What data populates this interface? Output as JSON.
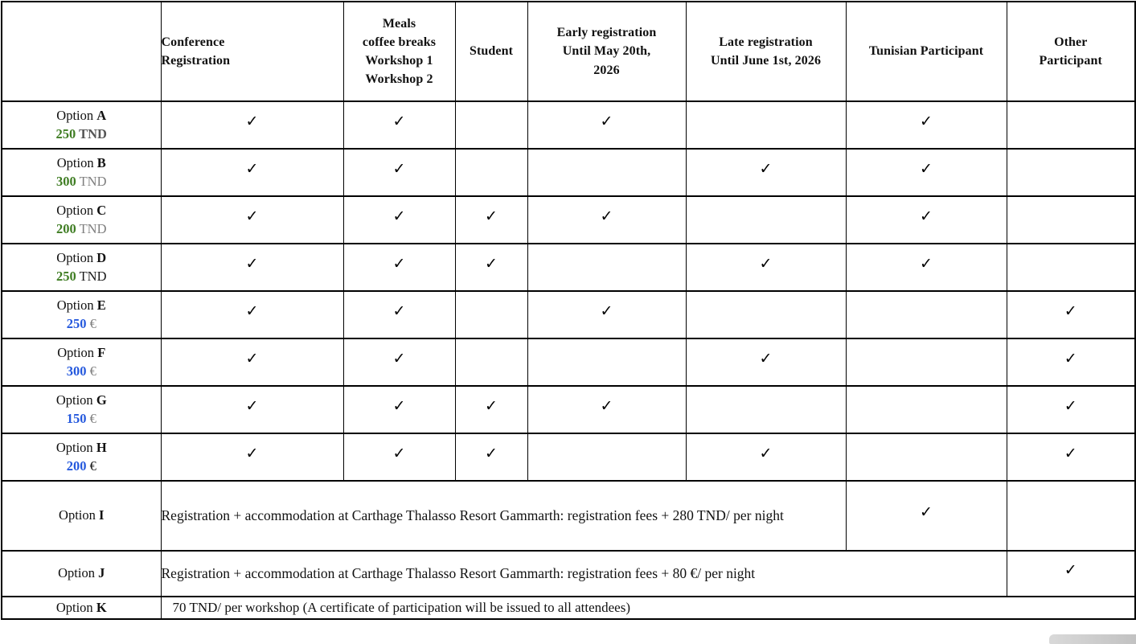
{
  "colors": {
    "green": "#3f7d23",
    "blue": "#2458dd",
    "gray": "#7f7f7f",
    "dark_gray": "#555555",
    "black": "#1a1a1a"
  },
  "check_glyph": "✓",
  "option_word": "Option",
  "header": {
    "cells": [
      "",
      "Conference\nRegistration",
      "Meals\ncoffee breaks\nWorkshop 1\nWorkshop 2",
      "Student",
      "Early registration\nUntil May 20th,\n2026",
      "Late registration\nUntil June 1st, 2026",
      "Tunisian Participant",
      "Other\nParticipant"
    ]
  },
  "columns_keys": [
    "conference_registration",
    "meals_workshops",
    "student",
    "early_registration",
    "late_registration",
    "tunisian_participant",
    "other_participant"
  ],
  "options": [
    {
      "letter": "A",
      "price": {
        "amount": "250",
        "currency": "TND",
        "amount_color": "green",
        "currency_color": "dark_gray",
        "currency_bold": true
      },
      "checks": [
        true,
        true,
        false,
        true,
        false,
        true,
        false
      ]
    },
    {
      "letter": "B",
      "price": {
        "amount": "300",
        "currency": "TND",
        "amount_color": "green",
        "currency_color": "gray",
        "currency_bold": false
      },
      "checks": [
        true,
        true,
        false,
        false,
        true,
        true,
        false
      ]
    },
    {
      "letter": "C",
      "price": {
        "amount": "200",
        "currency": "TND",
        "amount_color": "green",
        "currency_color": "gray",
        "currency_bold": false
      },
      "checks": [
        true,
        true,
        true,
        true,
        false,
        true,
        false
      ]
    },
    {
      "letter": "D",
      "price": {
        "amount": "250",
        "currency": "TND",
        "amount_color": "green",
        "currency_color": "black",
        "currency_bold": false
      },
      "checks": [
        true,
        true,
        true,
        false,
        true,
        true,
        false
      ]
    },
    {
      "letter": "E",
      "price": {
        "amount": "250",
        "currency": "€",
        "amount_color": "blue",
        "currency_color": "gray",
        "currency_bold": false
      },
      "checks": [
        true,
        true,
        false,
        true,
        false,
        false,
        true
      ]
    },
    {
      "letter": "F",
      "price": {
        "amount": "300",
        "currency": "€",
        "amount_color": "blue",
        "currency_color": "gray",
        "currency_bold": false
      },
      "checks": [
        true,
        true,
        false,
        false,
        true,
        false,
        true
      ]
    },
    {
      "letter": "G",
      "price": {
        "amount": "150",
        "currency": "€",
        "amount_color": "blue",
        "currency_color": "gray",
        "currency_bold": false
      },
      "checks": [
        true,
        true,
        true,
        true,
        false,
        false,
        true
      ]
    },
    {
      "letter": "H",
      "price": {
        "amount": "200",
        "currency": "€",
        "amount_color": "blue",
        "currency_color": "black",
        "currency_bold": false
      },
      "checks": [
        true,
        true,
        true,
        false,
        true,
        false,
        true
      ]
    }
  ],
  "special_rows": [
    {
      "letter": "I",
      "row_class": "row-i",
      "span": 5,
      "text": "Registration + accommodation at Carthage Thalasso Resort Gammarth: registration fees + 280 TND/ per night",
      "justify": true,
      "check_tunisian": true,
      "check_other": false,
      "trailing_empty": true
    },
    {
      "letter": "J",
      "row_class": "row-j",
      "span": 6,
      "text": "Registration + accommodation at Carthage Thalasso Resort Gammarth: registration fees + 80 €/ per night",
      "justify": false,
      "check_tunisian": false,
      "check_other": true,
      "trailing_empty": false
    },
    {
      "letter": "K",
      "row_class": "row-k",
      "span": 7,
      "text": "70 TND/ per workshop (A certificate of participation will be issued to all attendees)",
      "justify": false,
      "check_tunisian": false,
      "check_other": false,
      "trailing_empty": false
    }
  ]
}
